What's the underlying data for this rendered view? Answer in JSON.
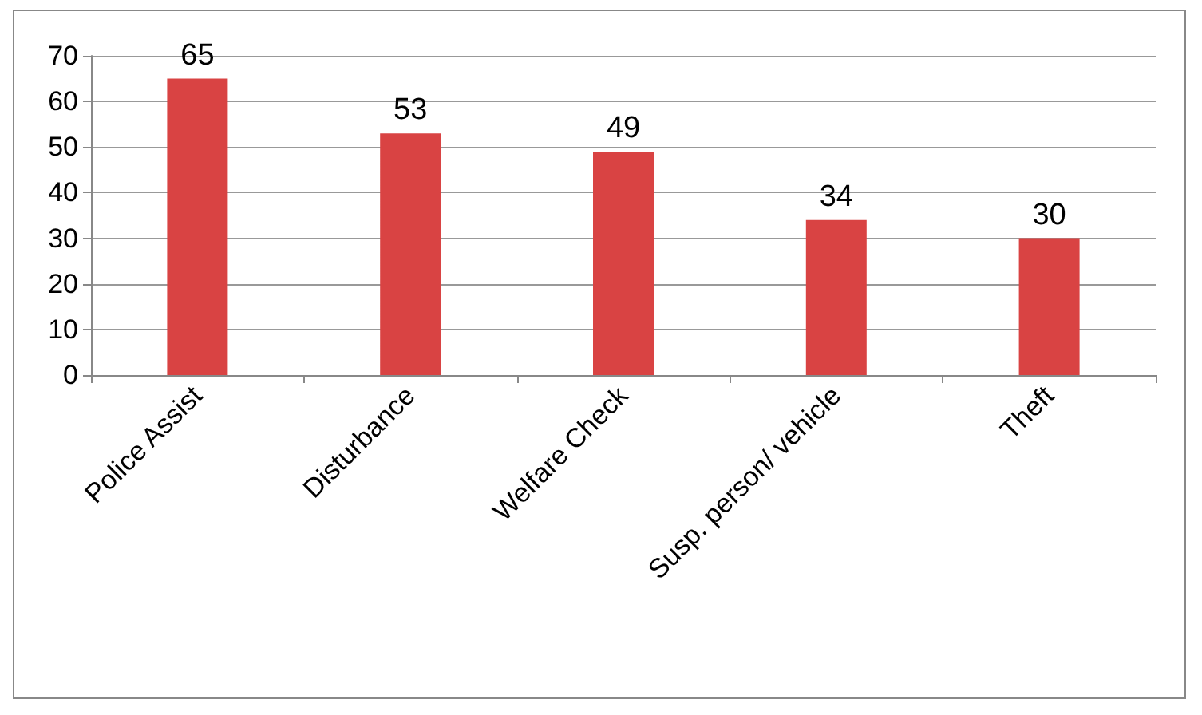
{
  "chart_data": {
    "type": "bar",
    "categories": [
      "Police Assist",
      "Disturbance",
      "Welfare Check",
      "Susp. person/ vehicle",
      "Theft"
    ],
    "values": [
      65,
      53,
      49,
      34,
      30
    ],
    "color": "#d94343",
    "ylim": [
      0,
      70
    ],
    "yticks": [
      0,
      10,
      20,
      30,
      40,
      50,
      60,
      70
    ],
    "grid": "y",
    "data_labels": true
  }
}
